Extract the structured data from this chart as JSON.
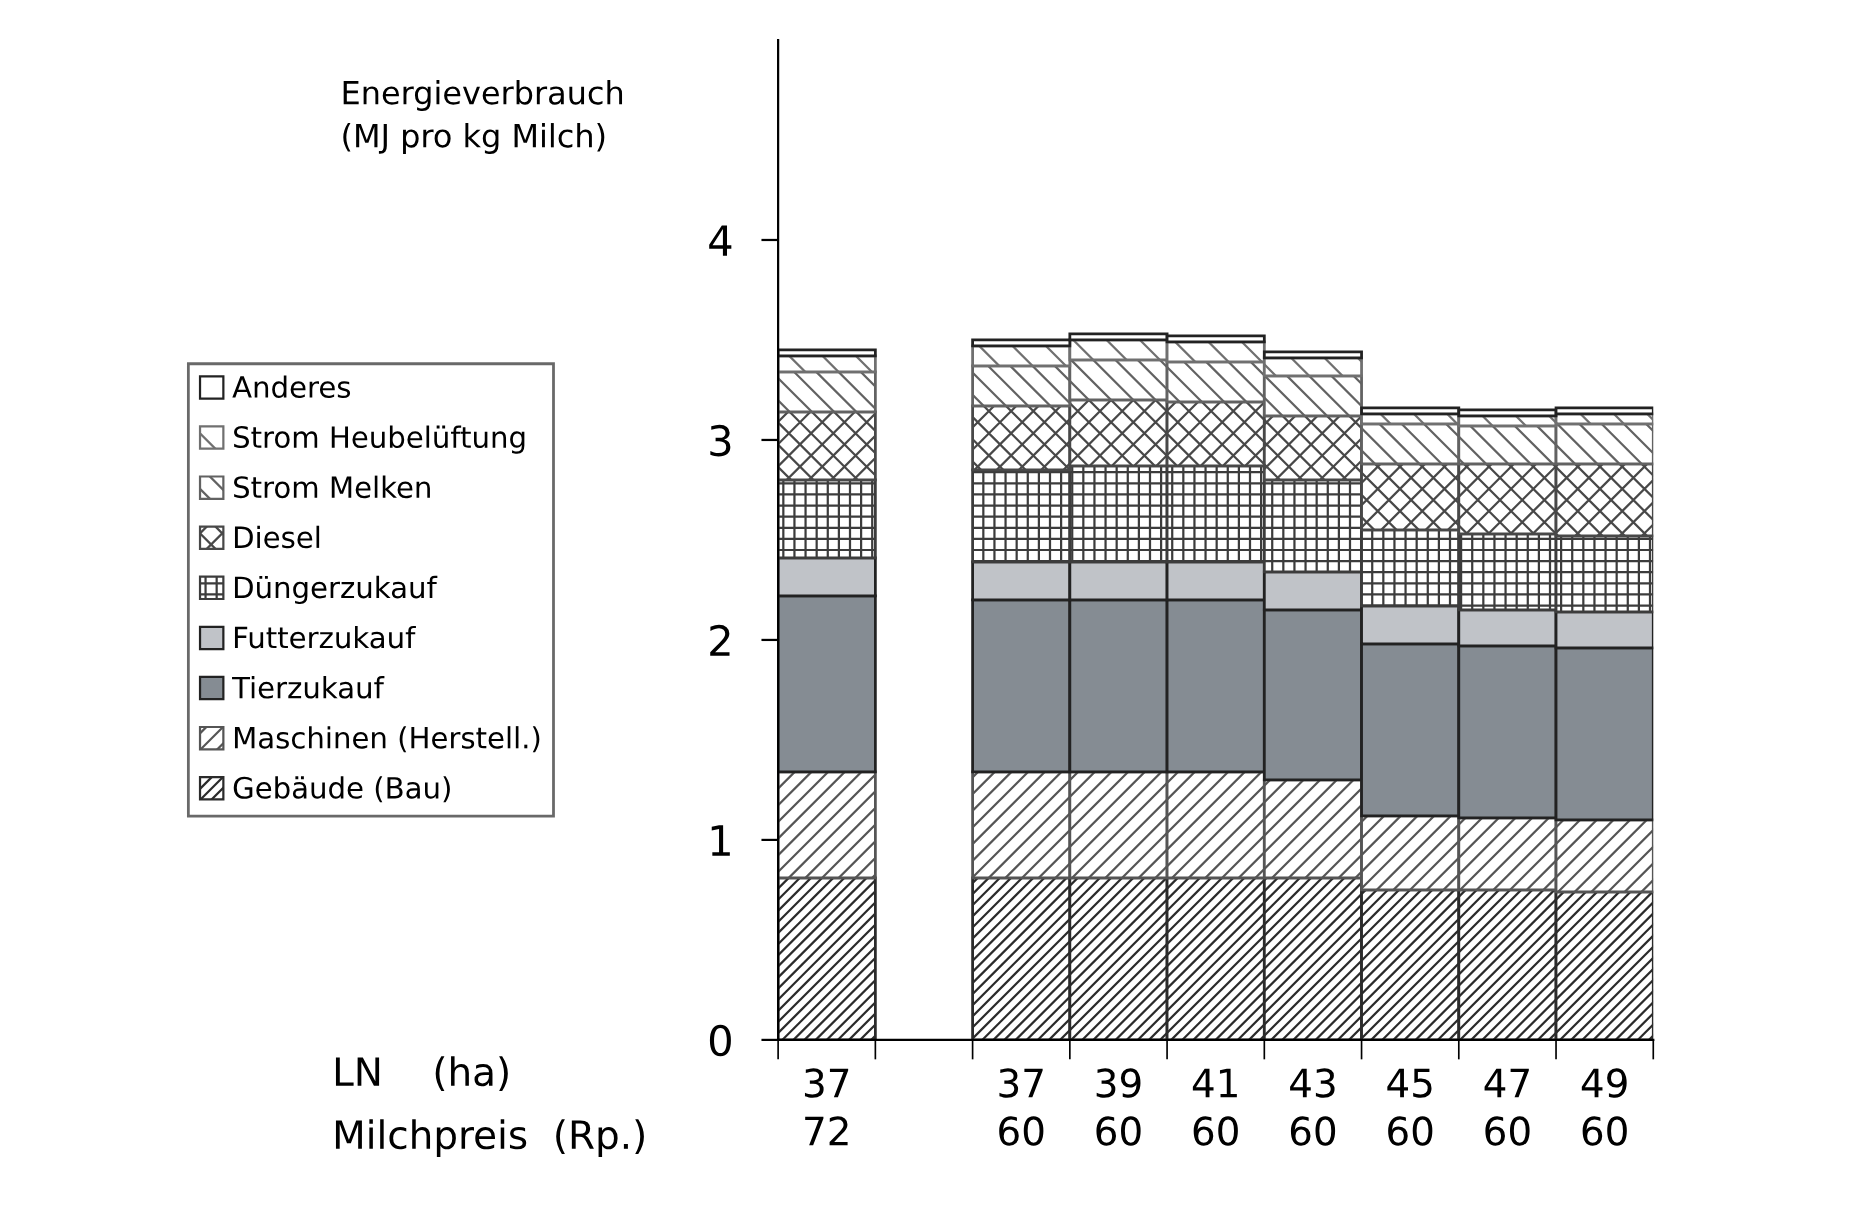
{
  "chart_data": {
    "type": "bar",
    "stacked": true,
    "ylabel": "Energieverbrauch\n(MJ pro kg Milch)",
    "categories": [
      "37\n72",
      null,
      "37\n60",
      "39\n60",
      "41\n60",
      "43\n60",
      "45\n60",
      "47\n60",
      "49\n60"
    ],
    "annotations": [
      "LN    (ha)",
      "Milchpreis  (Rp.)"
    ],
    "series": [
      {
        "name": "Gebäude (Bau)",
        "color": "#2b2b2b",
        "values": [
          0.81,
          null,
          0.81,
          0.81,
          0.81,
          0.81,
          0.75,
          0.75,
          0.74
        ]
      },
      {
        "name": "Maschinen (Herstell.)",
        "color": "#555555",
        "values": [
          0.53,
          null,
          0.53,
          0.53,
          0.53,
          0.49,
          0.37,
          0.36,
          0.36
        ]
      },
      {
        "name": "Tierzukauf",
        "color": "#858c93",
        "values": [
          0.88,
          null,
          0.86,
          0.86,
          0.86,
          0.85,
          0.86,
          0.86,
          0.86
        ]
      },
      {
        "name": "Futterzukauf",
        "color": "#c0c3c8",
        "values": [
          0.19,
          null,
          0.19,
          0.19,
          0.19,
          0.19,
          0.19,
          0.18,
          0.18
        ]
      },
      {
        "name": "Düngerzukauf",
        "color": "#3c3c3c",
        "values": [
          0.39,
          null,
          0.46,
          0.48,
          0.48,
          0.46,
          0.38,
          0.38,
          0.38
        ]
      },
      {
        "name": "Diesel",
        "color": "#484848",
        "values": [
          0.34,
          null,
          0.32,
          0.33,
          0.32,
          0.32,
          0.33,
          0.35,
          0.36
        ]
      },
      {
        "name": "Strom Melken",
        "color": "#626262",
        "values": [
          0.2,
          null,
          0.2,
          0.2,
          0.2,
          0.2,
          0.2,
          0.19,
          0.2
        ]
      },
      {
        "name": "Strom Heubelüftung",
        "color": "#707070",
        "values": [
          0.08,
          null,
          0.1,
          0.1,
          0.1,
          0.09,
          0.05,
          0.05,
          0.05
        ]
      },
      {
        "name": "Anderes",
        "color": "#ffffff",
        "values": [
          0.03,
          null,
          0.03,
          0.03,
          0.03,
          0.03,
          0.03,
          0.03,
          0.03
        ]
      }
    ],
    "ylim": [
      0,
      5
    ],
    "yticks": [
      0,
      1,
      2,
      3,
      4
    ],
    "grid": false,
    "legend": "left"
  }
}
